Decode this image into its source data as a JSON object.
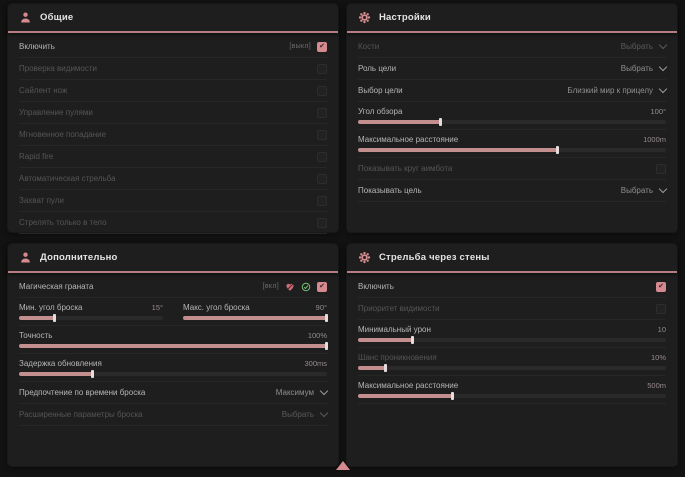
{
  "colors": {
    "accent": "#d48a8f",
    "header_underline": "#b47e82",
    "slider_fill": "#c38e8e",
    "green_icon": "#74bd74",
    "panel_bg": "#1e1e1e",
    "page_bg": "#121212"
  },
  "panels": {
    "general": {
      "title": "Общие",
      "icon": "user-icon",
      "rows": [
        {
          "label": "Включить",
          "badge": "[выкл]",
          "checked": true
        },
        {
          "label": "Проверка видимости",
          "checked": false
        },
        {
          "label": "Сайлент нож",
          "checked": false
        },
        {
          "label": "Управление пулями",
          "checked": false
        },
        {
          "label": "Мгновенное попадание",
          "checked": false
        },
        {
          "label": "Rapid fire",
          "checked": false
        },
        {
          "label": "Автоматическая стрельба",
          "checked": false
        },
        {
          "label": "Захват пули",
          "checked": false
        },
        {
          "label": "Стрелять только в тело",
          "checked": false
        }
      ]
    },
    "settings": {
      "title": "Настройки",
      "icon": "gear-icon",
      "rows": {
        "bones": {
          "label": "Кости",
          "value": "Выбрать"
        },
        "target_role": {
          "label": "Роль цели",
          "value": "Выбрать"
        },
        "target_select": {
          "label": "Выбор цели",
          "value": "Близкий мир к прицелу"
        },
        "fov": {
          "label": "Угол обзора",
          "value": "100°",
          "fill_pct": 27
        },
        "max_distance": {
          "label": "Максимальное расстояние",
          "value": "1000m",
          "fill_pct": 65
        },
        "show_circle": {
          "label": "Показывать круг аимбота",
          "checked": false
        },
        "show_target": {
          "label": "Показывать цель",
          "value": "Выбрать"
        }
      }
    },
    "additional": {
      "title": "Дополнительно",
      "icon": "user-icon",
      "rows": {
        "magic_grenade": {
          "label": "Магическая граната",
          "badge": "[вкл]",
          "checked": true,
          "icons": [
            "heart-icon",
            "check-circle-icon"
          ]
        },
        "min_throw": {
          "label": "Мин. угол броска",
          "value": "15°",
          "fill_pct": 25
        },
        "max_throw": {
          "label": "Макс. угол броска",
          "value": "90°",
          "fill_pct": 100
        },
        "accuracy": {
          "label": "Точность",
          "value": "100%",
          "fill_pct": 100
        },
        "update_delay": {
          "label": "Задержка обновления",
          "value": "300ms",
          "fill_pct": 24
        },
        "throw_time_pref": {
          "label": "Предпочтение по времени броска",
          "value": "Максимум"
        },
        "advanced_throw": {
          "label": "Расширенные параметры броска",
          "value": "Выбрать"
        }
      }
    },
    "wallbang": {
      "title": "Стрельба через стены",
      "icon": "gear-icon",
      "rows": {
        "enable": {
          "label": "Включить",
          "checked": true
        },
        "visibility_priority": {
          "label": "Приоритет видимости",
          "checked": false
        },
        "min_damage": {
          "label": "Минимальный урон",
          "value": "10",
          "fill_pct": 18
        },
        "penetration_chance": {
          "label": "Шанс проникновения",
          "value": "10%",
          "fill_pct": 9
        },
        "max_distance": {
          "label": "Максимальное расстояние",
          "value": "500m",
          "fill_pct": 31
        }
      }
    }
  },
  "footer": {
    "indicator_icon": "triangle-up-icon"
  }
}
